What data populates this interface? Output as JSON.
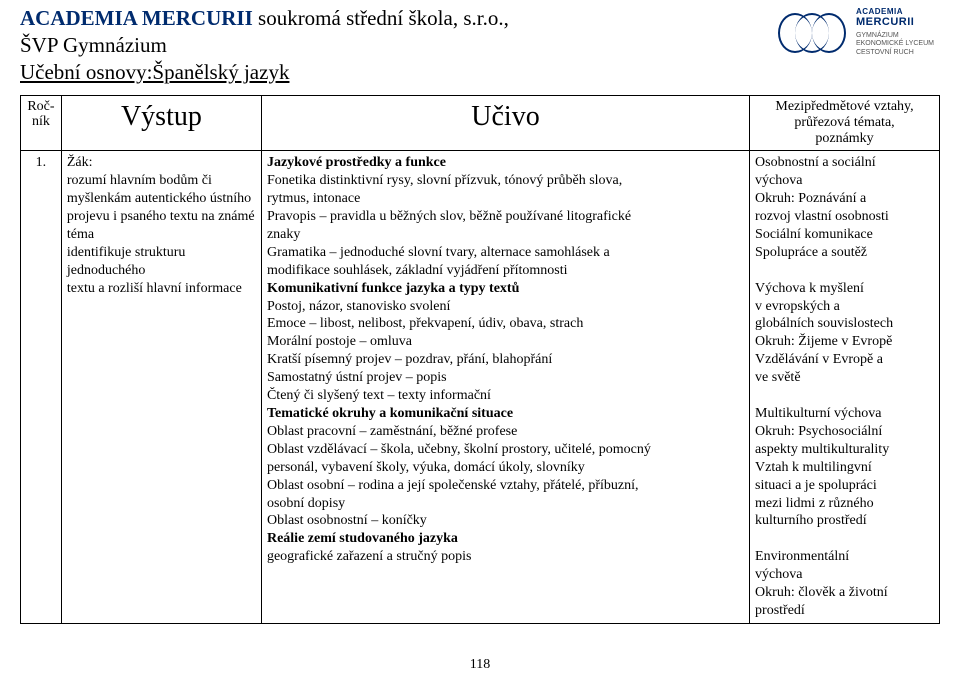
{
  "header": {
    "school_name": "ACADEMIA MERCURII",
    "school_rest": "  soukromá střední škola, s.r.o.,",
    "line2": "ŠVP Gymnázium",
    "line3": "Učební osnovy:Španělský jazyk",
    "logo_top": "ACADEMIA",
    "logo_bot": "MERCURII",
    "logo_sub1": "GYMNÁZIUM",
    "logo_sub2": "EKONOMICKÉ LYCEUM",
    "logo_sub3": "CESTOVNÍ RUCH"
  },
  "columns": {
    "c0a": "Roč-",
    "c0b": "ník",
    "c1": "Výstup",
    "c2": "Učivo",
    "c3a": "Mezipředmětové vztahy,",
    "c3b": "průřezová témata,",
    "c3c": "poznámky"
  },
  "row": {
    "num": "1.",
    "vystup": {
      "l1": "Žák:",
      "l2": "rozumí hlavním bodům či",
      "l3": "myšlenkám autentického ústního",
      "l4": "projevu i psaného textu na známé",
      "l5": "téma",
      "l6": "identifikuje strukturu jednoduchého",
      "l7": "textu a rozliší hlavní informace"
    },
    "ucivo": {
      "h1": "Jazykové prostředky a funkce",
      "l1": "Fonetika distinktivní rysy, slovní přízvuk, tónový průběh slova,",
      "l2": "rytmus, intonace",
      "l3": "Pravopis – pravidla u běžných slov, běžně používané litografické",
      "l4": "znaky",
      "l5": "Gramatika – jednoduché slovní tvary, alternace samohlásek a",
      "l6": "modifikace souhlásek, základní vyjádření přítomnosti",
      "h2": "Komunikativní funkce jazyka a typy textů",
      "l7": "Postoj, názor, stanovisko svolení",
      "l8": "Emoce – libost, nelibost, překvapení, údiv, obava, strach",
      "l9": "Morální postoje – omluva",
      "l10": "Kratší písemný projev – pozdrav, přání, blahopřání",
      "l11": "Samostatný ústní projev – popis",
      "l12": "Čtený či slyšený text – texty informační",
      "h3": "Tematické okruhy a komunikační situace",
      "l13": "Oblast pracovní – zaměstnání, běžné profese",
      "l14": "Oblast vzdělávací – škola, učebny, školní prostory, učitelé, pomocný",
      "l15": "personál, vybavení školy, výuka, domácí úkoly, slovníky",
      "l16": "Oblast osobní – rodina a její společenské vztahy, přátelé, příbuzní,",
      "l17": "osobní dopisy",
      "l18": "Oblast osobnostní – koníčky",
      "h4": "Reálie zemí studovaného jazyka",
      "l19": "geografické zařazení a stručný popis"
    },
    "mezi": {
      "l1": "Osobnostní a sociální",
      "l2": "výchova",
      "l3": "Okruh: Poznávání a",
      "l4": "rozvoj vlastní osobnosti",
      "l5": "Sociální komunikace",
      "l6": "Spolupráce a soutěž",
      "l8": "Výchova k myšlení",
      "l9": "v evropských a",
      "l10": "globálních souvislostech",
      "l11": "Okruh: Žijeme v Evropě",
      "l12": "Vzdělávání v Evropě a",
      "l13": "ve světě",
      "l15": "Multikulturní výchova",
      "l16": "Okruh: Psychosociální",
      "l17": "aspekty multikulturality",
      "l18": "Vztah k multilingvní",
      "l19": "situaci a je spolupráci",
      "l20": "mezi lidmi z různého",
      "l21": "kulturního prostředí",
      "l23": "Environmentální",
      "l24": "výchova",
      "l25": "Okruh: člověk a životní",
      "l26": "prostředí"
    }
  },
  "page_number": "118"
}
